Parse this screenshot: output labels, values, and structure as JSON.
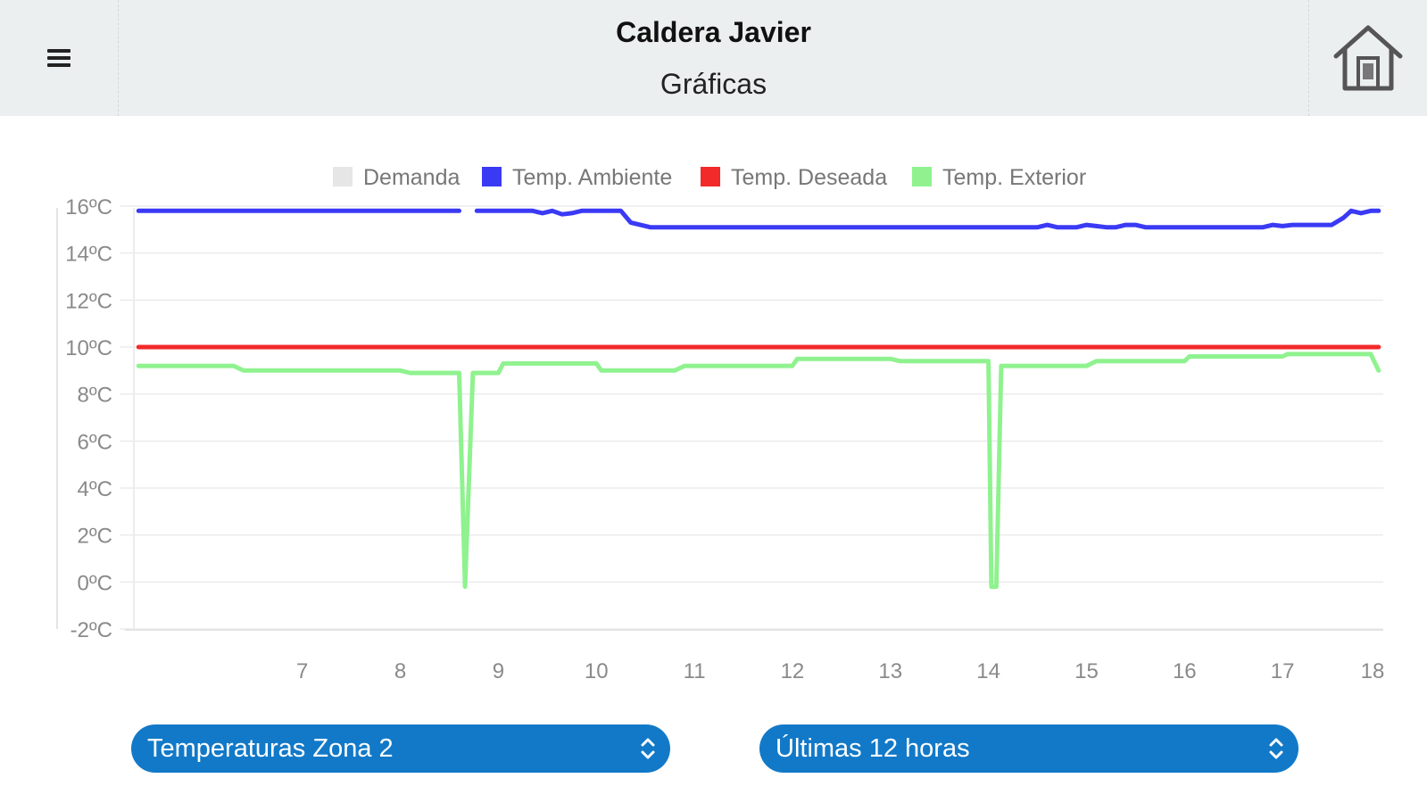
{
  "header": {
    "title": "Caldera Javier",
    "subtitle": "Gráficas",
    "menu_icon": "hamburger-icon",
    "home_icon": "home-icon"
  },
  "chart_data": {
    "type": "line",
    "legend_position": "top",
    "y_unit": "°C",
    "ylim": [
      -2,
      16
    ],
    "y_ticks": [
      "16ºC",
      "14ºC",
      "12ºC",
      "10ºC",
      "8ºC",
      "6ºC",
      "4ºC",
      "2ºC",
      "0ºC",
      "-2ºC"
    ],
    "y_tick_values": [
      16,
      14,
      12,
      10,
      8,
      6,
      4,
      2,
      0,
      -2
    ],
    "xlim": [
      5.3,
      18.0
    ],
    "x_ticks": [
      "7",
      "8",
      "9",
      "10",
      "11",
      "12",
      "13",
      "14",
      "15",
      "16",
      "17",
      "18"
    ],
    "x_tick_values": [
      7,
      8,
      9,
      10,
      11,
      12,
      13,
      14,
      15,
      16,
      17,
      18
    ],
    "grid": true,
    "series": [
      {
        "name": "Demanda",
        "color": "#e6e6e6",
        "x": [],
        "y": []
      },
      {
        "name": "Temp. Ambiente",
        "color": "#3a3af5",
        "segments": [
          {
            "x": [
              5.33,
              8.6
            ],
            "y": [
              15.8,
              15.8
            ]
          },
          {
            "x": [
              8.78,
              9.35,
              9.45,
              9.55,
              9.65,
              9.75,
              9.85,
              10.0,
              10.25,
              10.35,
              10.45,
              10.55,
              11.0,
              12.0,
              13.0,
              14.0,
              14.5,
              14.6,
              14.7,
              14.9,
              15.0,
              15.1,
              15.2,
              15.3,
              15.4,
              15.5,
              15.6,
              16.0,
              16.5,
              16.8,
              16.9,
              17.0,
              17.1,
              17.2,
              17.5,
              17.62,
              17.7,
              17.8,
              17.9,
              17.98
            ],
            "y": [
              15.8,
              15.8,
              15.7,
              15.8,
              15.65,
              15.7,
              15.8,
              15.8,
              15.8,
              15.3,
              15.2,
              15.1,
              15.1,
              15.1,
              15.1,
              15.1,
              15.1,
              15.2,
              15.1,
              15.1,
              15.2,
              15.15,
              15.1,
              15.1,
              15.2,
              15.2,
              15.1,
              15.1,
              15.1,
              15.1,
              15.2,
              15.15,
              15.2,
              15.2,
              15.2,
              15.5,
              15.8,
              15.7,
              15.8,
              15.8
            ]
          }
        ]
      },
      {
        "name": "Temp. Deseada",
        "color": "#f22a2a",
        "segments": [
          {
            "x": [
              5.33,
              17.98
            ],
            "y": [
              10.0,
              10.0
            ]
          }
        ]
      },
      {
        "name": "Temp. Exterior",
        "color": "#8ff28f",
        "segments": [
          {
            "x": [
              5.33,
              6.3,
              6.4,
              7.0,
              7.5,
              8.0,
              8.1,
              8.6,
              8.66,
              8.74,
              8.8,
              8.9,
              9.0,
              9.05,
              9.2,
              9.4,
              9.5,
              10.0,
              10.05,
              10.5,
              10.8,
              10.9,
              11.5,
              12.0,
              12.05,
              12.7,
              13.0,
              13.1,
              13.5,
              14.0,
              14.03,
              14.08,
              14.13,
              14.2,
              14.5,
              15.0,
              15.1,
              15.5,
              16.0,
              16.05,
              16.5,
              17.0,
              17.05,
              17.5,
              17.9,
              17.98
            ],
            "y": [
              9.2,
              9.2,
              9.0,
              9.0,
              9.0,
              9.0,
              8.9,
              8.9,
              -0.2,
              8.9,
              8.9,
              8.9,
              8.9,
              9.3,
              9.3,
              9.3,
              9.3,
              9.3,
              9.0,
              9.0,
              9.0,
              9.2,
              9.2,
              9.2,
              9.5,
              9.5,
              9.5,
              9.4,
              9.4,
              9.4,
              -0.2,
              -0.2,
              9.2,
              9.2,
              9.2,
              9.2,
              9.4,
              9.4,
              9.4,
              9.6,
              9.6,
              9.6,
              9.7,
              9.7,
              9.7,
              9.0
            ]
          }
        ]
      }
    ]
  },
  "controls": {
    "zone_select": {
      "value": "Temperaturas Zona 2"
    },
    "period_select": {
      "value": "Últimas 12 horas"
    }
  }
}
